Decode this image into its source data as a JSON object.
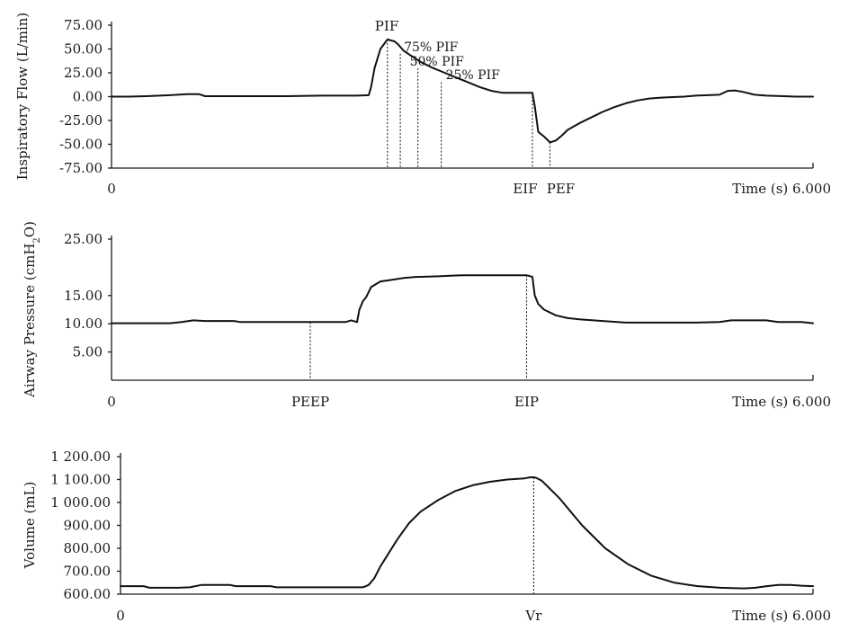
{
  "chart_data": [
    {
      "type": "line",
      "title": "",
      "xlabel": "Time (s)",
      "xlim": [
        0,
        6
      ],
      "x_start_label": "0",
      "x_end_label": "6.000",
      "ylabel_parts": [
        "Inspiratory Flow (L/min)"
      ],
      "ylim": [
        -75,
        75
      ],
      "yticks": [
        75,
        50,
        25,
        0,
        -25,
        -50,
        -75
      ],
      "ytick_labels": [
        "75.00",
        "50.00",
        "25.00",
        "0.00",
        "-25.00",
        "-50.00",
        "-75.00"
      ],
      "series": [
        {
          "x": [
            0,
            0.15,
            0.3,
            0.5,
            0.65,
            0.75,
            0.8,
            0.9,
            1.2,
            1.5,
            1.8,
            2.1,
            2.2,
            2.22,
            2.25,
            2.3,
            2.36,
            2.42,
            2.45,
            2.5,
            2.55,
            2.6,
            2.65,
            2.75,
            2.85,
            2.95,
            3.05,
            3.15,
            3.25,
            3.35,
            3.5,
            3.6,
            3.62,
            3.65,
            3.7,
            3.75,
            3.8,
            3.85,
            3.9,
            4.0,
            4.1,
            4.2,
            4.3,
            4.4,
            4.5,
            4.6,
            4.7,
            4.8,
            4.9,
            5.0,
            5.1,
            5.2,
            5.27,
            5.33,
            5.4,
            5.5,
            5.6,
            5.75,
            5.85,
            6.0
          ],
          "y": [
            0,
            0,
            0.5,
            1.5,
            2.5,
            2.5,
            0.5,
            0.5,
            0.5,
            0.5,
            1,
            1,
            1.5,
            10,
            30,
            50,
            60,
            58,
            55,
            48,
            44,
            40,
            36,
            30,
            25,
            20,
            15,
            10,
            6,
            4,
            4,
            4,
            -10,
            -37,
            -42,
            -48,
            -46,
            -41,
            -35,
            -28,
            -22,
            -16,
            -11,
            -7,
            -4,
            -2,
            -1,
            -0.5,
            0,
            1,
            1.5,
            2,
            6,
            6.5,
            5,
            2,
            1,
            0.5,
            0,
            0
          ]
        }
      ],
      "annotations": [
        {
          "text": "PIF",
          "x": 2.36,
          "y": 60
        },
        {
          "text": "75% PIF",
          "x": 2.47,
          "y": 45
        },
        {
          "text": "50% PIF",
          "x": 2.62,
          "y": 30
        },
        {
          "text": "25% PIF",
          "x": 2.82,
          "y": 15
        },
        {
          "text": "EIF",
          "x": 3.6,
          "y": 4
        },
        {
          "text": "PEF",
          "x": 3.75,
          "y": -48
        }
      ]
    },
    {
      "type": "line",
      "title": "",
      "xlabel": "Time (s)",
      "xlim": [
        0,
        6
      ],
      "x_start_label": "0",
      "x_end_label": "6.000",
      "ylabel_parts": [
        "Airway Pressure (cmH",
        "2",
        "O)"
      ],
      "ylim": [
        0,
        25
      ],
      "yticks": [
        25,
        15,
        10,
        5
      ],
      "ytick_labels": [
        "25.00",
        "15.00",
        "10.00",
        "5.00"
      ],
      "series": [
        {
          "x": [
            0,
            0.5,
            0.6,
            0.7,
            0.8,
            0.9,
            1.05,
            1.1,
            1.2,
            1.5,
            1.7,
            2.0,
            2.05,
            2.1,
            2.12,
            2.15,
            2.18,
            2.22,
            2.3,
            2.4,
            2.5,
            2.6,
            2.8,
            3.0,
            3.2,
            3.4,
            3.55,
            3.6,
            3.62,
            3.65,
            3.7,
            3.8,
            3.9,
            4.0,
            4.2,
            4.4,
            4.6,
            4.8,
            5.0,
            5.2,
            5.3,
            5.4,
            5.5,
            5.6,
            5.7,
            5.8,
            5.9,
            6.0
          ],
          "y": [
            10.1,
            10.1,
            10.3,
            10.6,
            10.5,
            10.5,
            10.5,
            10.3,
            10.3,
            10.3,
            10.3,
            10.3,
            10.6,
            10.3,
            12.5,
            14,
            14.8,
            16.5,
            17.5,
            17.8,
            18.1,
            18.3,
            18.4,
            18.6,
            18.6,
            18.6,
            18.6,
            18.3,
            15,
            13.5,
            12.5,
            11.5,
            11,
            10.8,
            10.5,
            10.2,
            10.2,
            10.2,
            10.2,
            10.3,
            10.6,
            10.6,
            10.6,
            10.6,
            10.3,
            10.3,
            10.3,
            10.1
          ]
        }
      ],
      "annotations": [
        {
          "text": "PEEP",
          "x": 1.7,
          "y": 10.3
        },
        {
          "text": "EIP",
          "x": 3.55,
          "y": 18.6
        }
      ]
    },
    {
      "type": "line",
      "title": "",
      "xlabel": "Time (s)",
      "xlim": [
        0,
        6
      ],
      "x_start_label": "0",
      "x_end_label": "6.000",
      "ylabel_parts": [
        "Volume (mL)"
      ],
      "ylim": [
        600,
        1200
      ],
      "yticks": [
        1200,
        1100,
        1000,
        900,
        800,
        700,
        600
      ],
      "ytick_labels": [
        "1 200.00",
        "1 100.00",
        "1 000.00",
        "900.00",
        "800.00",
        "700.00",
        "600.00"
      ],
      "series": [
        {
          "x": [
            0,
            0.2,
            0.25,
            0.5,
            0.6,
            0.7,
            0.95,
            1.0,
            1.3,
            1.35,
            1.6,
            1.9,
            2.1,
            2.15,
            2.2,
            2.25,
            2.3,
            2.4,
            2.5,
            2.6,
            2.75,
            2.9,
            3.05,
            3.2,
            3.35,
            3.5,
            3.55,
            3.58,
            3.6,
            3.65,
            3.7,
            3.8,
            3.9,
            4.0,
            4.2,
            4.4,
            4.6,
            4.8,
            5.0,
            5.2,
            5.4,
            5.5,
            5.6,
            5.7,
            5.8,
            5.9,
            6.0
          ],
          "y": [
            635,
            635,
            628,
            628,
            630,
            640,
            640,
            635,
            635,
            630,
            630,
            630,
            630,
            640,
            670,
            720,
            760,
            840,
            910,
            960,
            1010,
            1050,
            1075,
            1090,
            1100,
            1105,
            1110,
            1110,
            1108,
            1095,
            1070,
            1020,
            960,
            900,
            800,
            730,
            680,
            650,
            635,
            628,
            625,
            628,
            635,
            640,
            640,
            637,
            635
          ]
        }
      ],
      "annotations": [
        {
          "text": "Vr",
          "x": 3.58,
          "y": 1110
        }
      ]
    }
  ]
}
